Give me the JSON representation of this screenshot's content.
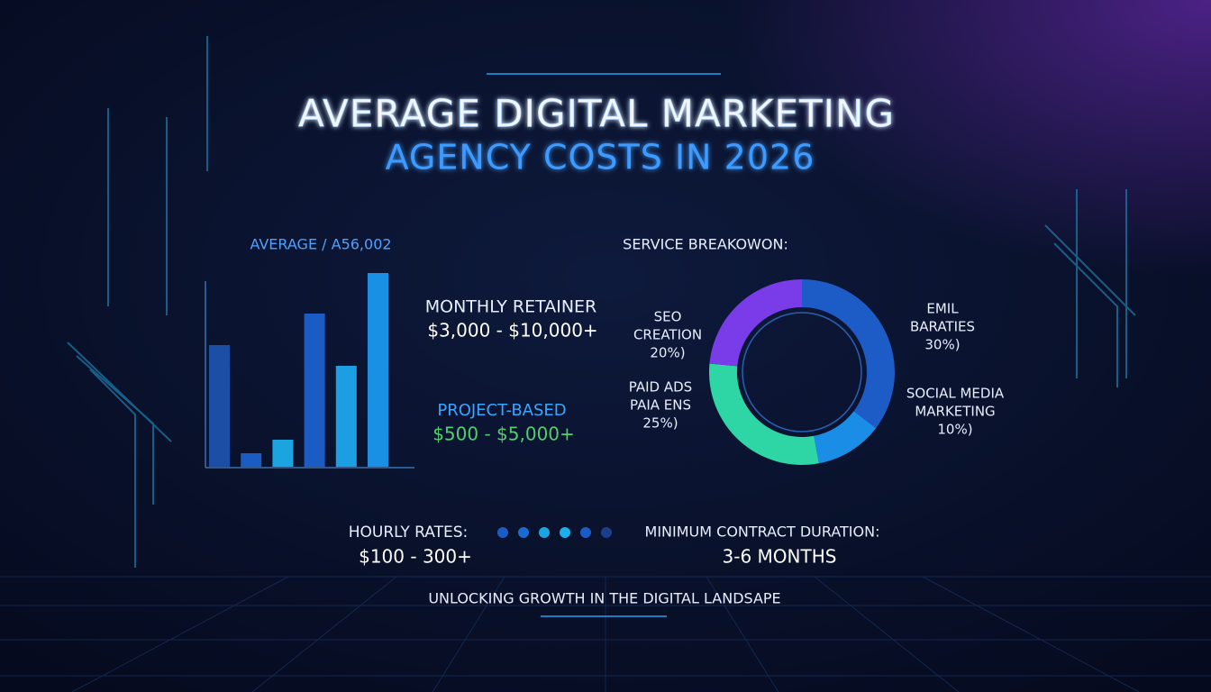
{
  "header": {
    "title_lines": [
      "AVERAGE DIGITAL MARKETING",
      "AGENCY COSTS IN 2026"
    ]
  },
  "chart_data": [
    {
      "type": "bar",
      "title": "AVERAGE / A56,002",
      "categories": [
        null,
        null,
        null,
        null,
        null,
        null
      ],
      "values": [
        135,
        15,
        30,
        170,
        112,
        215
      ],
      "colors": [
        "#1c4ea6",
        "#1a5cc2",
        "#1aa4e0",
        "#1b5cc4",
        "#1b9fe2",
        "#1a90e4"
      ],
      "ylim": [
        0,
        215
      ]
    },
    {
      "type": "donut",
      "title": "SERVICE BREAKOWON:",
      "categories": [
        [
          "EMIL",
          "BARATIES"
        ],
        [
          "SOCIAL MEDIA",
          "MARKETING"
        ],
        [
          "PAID ADS",
          "PAIA ENS"
        ],
        [
          "SEO",
          "CREATION"
        ]
      ],
      "values": [
        30,
        10,
        25,
        20
      ],
      "value_labels": [
        "30%)",
        "10%)",
        "25%)",
        "20%)"
      ],
      "colors": [
        "#1d5cc6",
        "#1a8ee6",
        "#2ed6a6",
        "#7a3be8"
      ]
    }
  ],
  "pricing": [
    {
      "label": "MONTHLY RETAINER",
      "range": "$3,000 - $10,000+"
    },
    {
      "label": "PROJECT-BASED",
      "range": "$500 - $5,000+"
    }
  ],
  "footer": {
    "hourly_label": "HOURLY RATES:",
    "hourly_range": "$100 - 300+",
    "contract_label": "MINIMUM CONTRACT DURATION:",
    "contract_value": "3-6 MONTHS",
    "tagline": "UNLOCKING GROWTH IN THE DIGITAL LANDSAPE"
  }
}
